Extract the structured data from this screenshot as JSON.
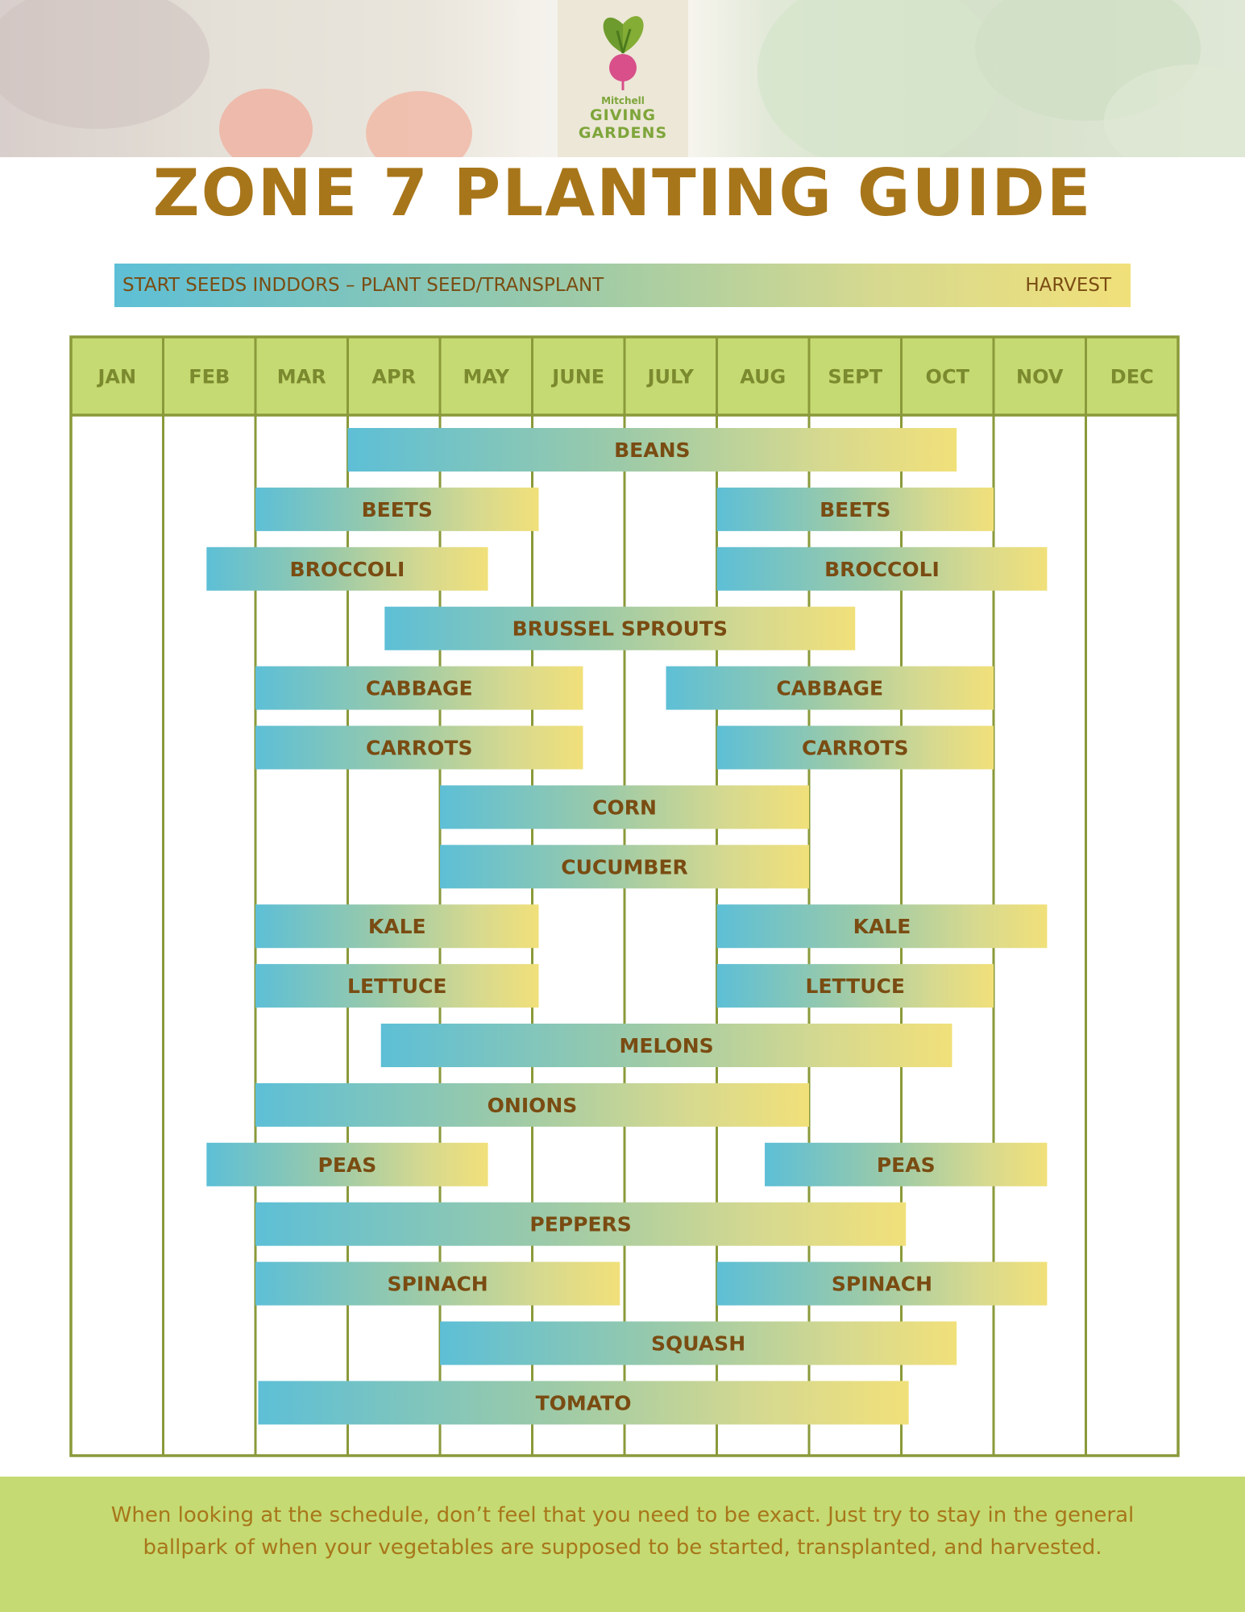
{
  "header": {
    "logo": {
      "line1": "Mitchell",
      "line2": "GIVING",
      "line3": "GARDENS"
    },
    "title": "ZONE 7 PLANTING GUIDE"
  },
  "legend": {
    "start_label": "START SEEDS INDDORS – PLANT SEED/TRANSPLANT",
    "end_label": "HARVEST",
    "gradient_colors": [
      "#5dbfd6",
      "#f1e07a"
    ]
  },
  "chart_data": {
    "type": "gantt",
    "months": [
      "JAN",
      "FEB",
      "MAR",
      "APR",
      "MAY",
      "JUNE",
      "JULY",
      "AUG",
      "SEPT",
      "OCT",
      "NOV",
      "DEC"
    ],
    "rows": [
      {
        "crop": "BEANS",
        "bars": [
          [
            3.0,
            9.6
          ]
        ]
      },
      {
        "crop": "BEETS",
        "bars": [
          [
            2.0,
            5.07
          ],
          [
            7.0,
            10.0
          ]
        ]
      },
      {
        "crop": "BROCCOLI",
        "bars": [
          [
            1.47,
            4.52
          ],
          [
            7.0,
            10.58
          ]
        ]
      },
      {
        "crop": "BRUSSEL SPROUTS",
        "bars": [
          [
            3.4,
            8.5
          ]
        ]
      },
      {
        "crop": "CABBAGE",
        "bars": [
          [
            2.0,
            5.55
          ],
          [
            6.45,
            10.0
          ]
        ]
      },
      {
        "crop": "CARROTS",
        "bars": [
          [
            2.0,
            5.55
          ],
          [
            7.0,
            10.0
          ]
        ]
      },
      {
        "crop": "CORN",
        "bars": [
          [
            4.0,
            8.0
          ]
        ]
      },
      {
        "crop": "CUCUMBER",
        "bars": [
          [
            4.0,
            8.0
          ]
        ]
      },
      {
        "crop": "KALE",
        "bars": [
          [
            2.0,
            5.07
          ],
          [
            7.0,
            10.58
          ]
        ]
      },
      {
        "crop": "LETTUCE",
        "bars": [
          [
            2.0,
            5.07
          ],
          [
            7.0,
            10.0
          ]
        ]
      },
      {
        "crop": "MELONS",
        "bars": [
          [
            3.36,
            9.55
          ]
        ]
      },
      {
        "crop": "ONIONS",
        "bars": [
          [
            2.0,
            8.0
          ]
        ]
      },
      {
        "crop": "PEAS",
        "bars": [
          [
            1.47,
            4.52
          ],
          [
            7.52,
            10.58
          ]
        ]
      },
      {
        "crop": "PEPPERS",
        "bars": [
          [
            2.0,
            9.05
          ]
        ]
      },
      {
        "crop": "SPINACH",
        "bars": [
          [
            2.0,
            5.95
          ],
          [
            7.0,
            10.58
          ]
        ]
      },
      {
        "crop": "SQUASH",
        "bars": [
          [
            4.0,
            9.6
          ]
        ]
      },
      {
        "crop": "TOMATO",
        "bars": [
          [
            2.03,
            9.08
          ]
        ]
      }
    ],
    "colors": {
      "grid": "#8a9a3a",
      "header_fill": "#c5da72",
      "header_text": "#7b8a2e",
      "bar_text": "#7a4c12"
    }
  },
  "footer": {
    "text": "When looking at the schedule, don’t feel that you need to be exact. Just try to stay in the general ballpark of when your vegetables are supposed to be started, transplanted, and harvested."
  }
}
